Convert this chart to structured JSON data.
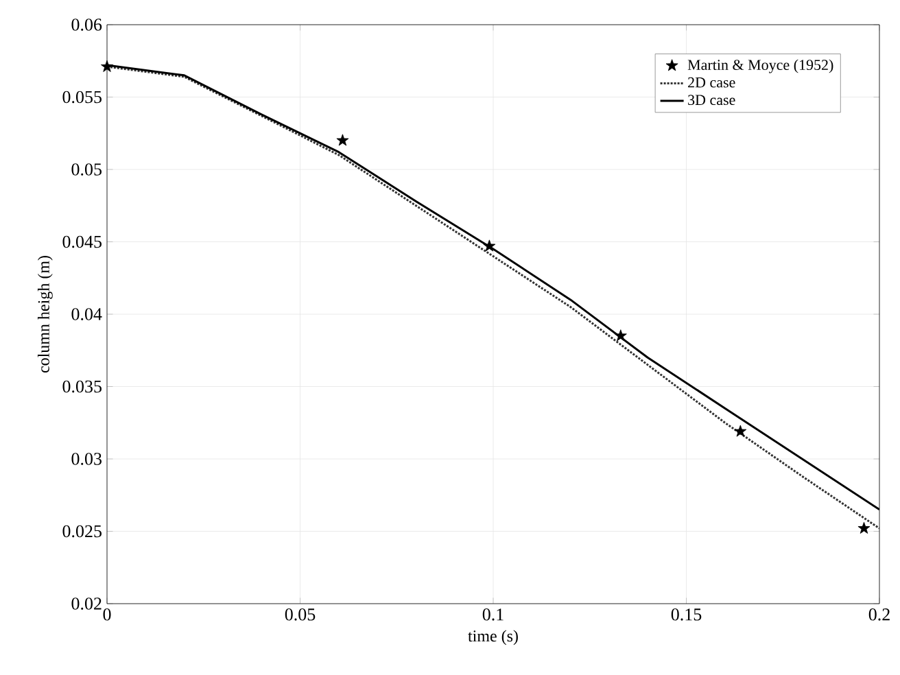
{
  "chart_data": {
    "type": "line",
    "xlabel": "time (s)",
    "ylabel": "column heigh (m)",
    "xlim": [
      0,
      0.2
    ],
    "ylim": [
      0.02,
      0.06
    ],
    "xticks": [
      0,
      0.05,
      0.1,
      0.15,
      0.2
    ],
    "yticks": [
      0.02,
      0.025,
      0.03,
      0.035,
      0.04,
      0.045,
      0.05,
      0.055,
      0.06
    ],
    "grid": true,
    "legend": "top right",
    "series": [
      {
        "name": "Martin & Moyce (1952)",
        "type": "scatter",
        "marker": "star",
        "color": "#000000",
        "x": [
          0,
          0.061,
          0.099,
          0.133,
          0.164,
          0.196
        ],
        "values": [
          0.0571,
          0.052,
          0.0447,
          0.0385,
          0.0319,
          0.0252
        ]
      },
      {
        "name": "2D case",
        "line_style": "dotted",
        "color": "#333333",
        "x": [
          0,
          0.02,
          0.04,
          0.06,
          0.08,
          0.1,
          0.12,
          0.14,
          0.16,
          0.18,
          0.2
        ],
        "values": [
          0.0571,
          0.0564,
          0.0537,
          0.051,
          0.0475,
          0.044,
          0.0405,
          0.0365,
          0.0325,
          0.0288,
          0.0252
        ]
      },
      {
        "name": "3D case",
        "line_style": "solid",
        "color": "#000000",
        "x": [
          0,
          0.02,
          0.04,
          0.06,
          0.08,
          0.1,
          0.12,
          0.14,
          0.16,
          0.18,
          0.2
        ],
        "values": [
          0.0572,
          0.0565,
          0.0538,
          0.0512,
          0.0478,
          0.0445,
          0.041,
          0.037,
          0.0335,
          0.03,
          0.0265
        ]
      }
    ]
  }
}
